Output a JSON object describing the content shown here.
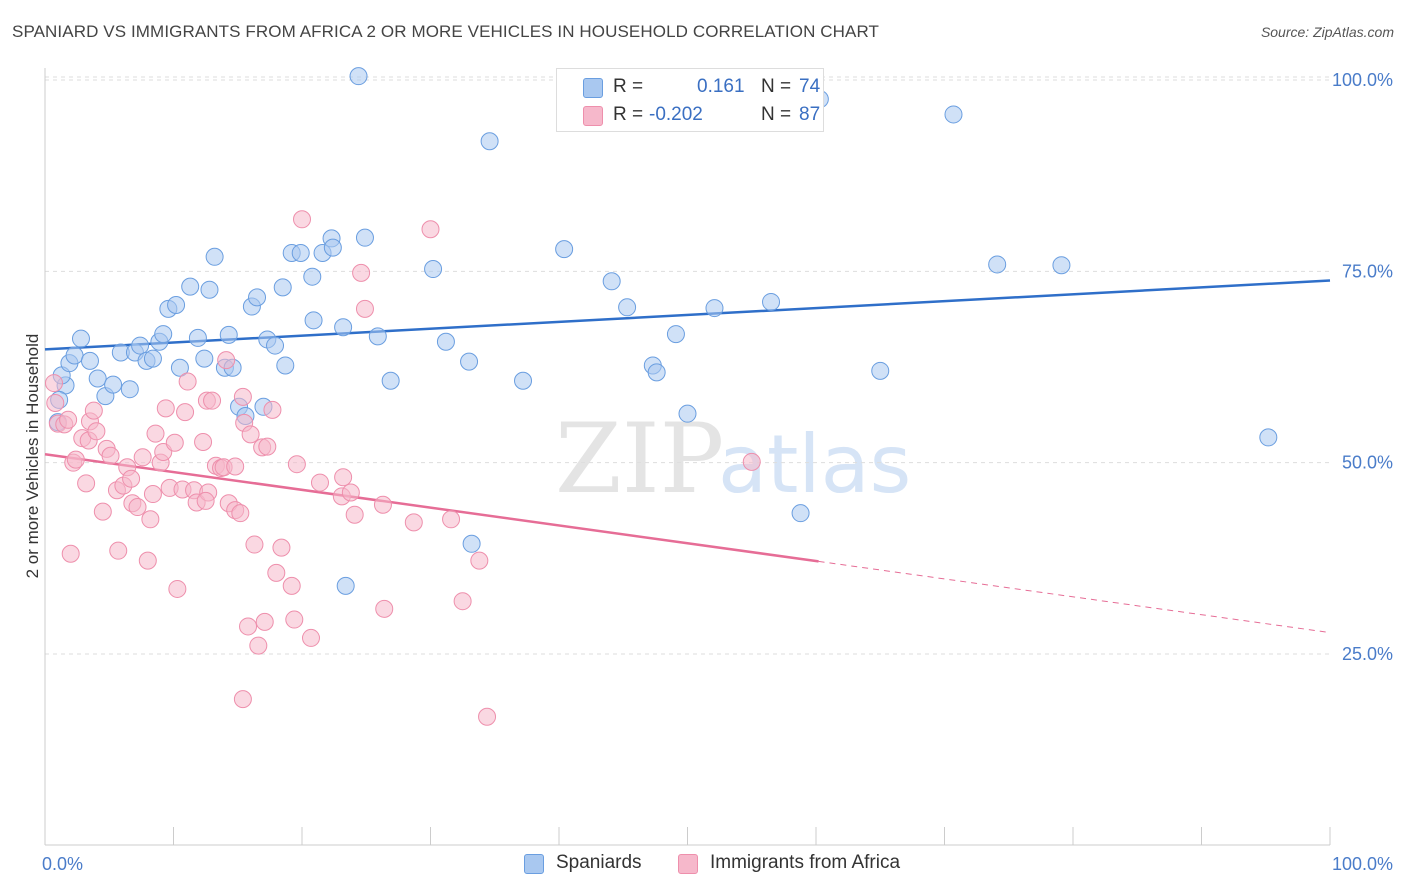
{
  "title": "SPANIARD VS IMMIGRANTS FROM AFRICA 2 OR MORE VEHICLES IN HOUSEHOLD CORRELATION CHART",
  "source": "Source: ZipAtlas.com",
  "watermark": {
    "zip": "ZIP",
    "atlas": "atlas"
  },
  "legend": {
    "rows": [
      {
        "r_label": "R =",
        "r_value": "0.161",
        "n_label": "N =",
        "n_value": "74",
        "color": "#a9c8f0"
      },
      {
        "r_label": "R =",
        "r_value": "-0.202",
        "n_label": "N =",
        "n_value": "87",
        "color": "#f6b8cb"
      }
    ]
  },
  "bottom_legend": [
    {
      "label": "Spaniards",
      "color": "#a9c8f0"
    },
    {
      "label": "Immigrants from Africa",
      "color": "#f6b8cb"
    }
  ],
  "chart_data": {
    "type": "scatter",
    "title": "SPANIARD VS IMMIGRANTS FROM AFRICA 2 OR MORE VEHICLES IN HOUSEHOLD CORRELATION CHART",
    "xlabel": "",
    "ylabel": "2 or more Vehicles in Household",
    "xlim": [
      0,
      100
    ],
    "ylim": [
      0,
      102
    ],
    "x_tick_labels": [
      "0.0%",
      "100.0%"
    ],
    "y_ticks": [
      25,
      50,
      75,
      100
    ],
    "y_tick_labels": [
      "25.0%",
      "50.0%",
      "75.0%",
      "100.0%"
    ],
    "grid": "horizontal dashed",
    "legend_position": "top-center",
    "series": [
      {
        "name": "Spaniards",
        "color": "#6a9ee0",
        "fill": "#a9c8f0",
        "trend": {
          "x": [
            0,
            100
          ],
          "y": [
            64.8,
            73.8
          ],
          "style": "solid"
        },
        "points": [
          [
            24.4,
            100.5
          ],
          [
            34.6,
            92.0
          ],
          [
            60.3,
            97.5
          ],
          [
            70.7,
            95.5
          ],
          [
            1.0,
            55.3
          ],
          [
            1.6,
            60.1
          ],
          [
            1.1,
            58.2
          ],
          [
            1.3,
            61.4
          ],
          [
            1.9,
            63.0
          ],
          [
            2.3,
            64.0
          ],
          [
            2.8,
            66.2
          ],
          [
            3.5,
            63.3
          ],
          [
            4.1,
            61.0
          ],
          [
            4.7,
            58.7
          ],
          [
            5.3,
            60.2
          ],
          [
            5.9,
            64.4
          ],
          [
            6.6,
            59.6
          ],
          [
            7.0,
            64.4
          ],
          [
            7.4,
            65.3
          ],
          [
            7.9,
            63.3
          ],
          [
            8.4,
            63.6
          ],
          [
            8.9,
            65.8
          ],
          [
            9.2,
            66.8
          ],
          [
            9.6,
            70.1
          ],
          [
            10.2,
            70.6
          ],
          [
            10.5,
            62.4
          ],
          [
            11.3,
            73.0
          ],
          [
            11.9,
            66.3
          ],
          [
            12.4,
            63.6
          ],
          [
            12.8,
            72.6
          ],
          [
            13.2,
            76.9
          ],
          [
            14.0,
            62.4
          ],
          [
            14.3,
            66.7
          ],
          [
            14.6,
            62.4
          ],
          [
            15.1,
            57.3
          ],
          [
            15.6,
            56.1
          ],
          [
            16.1,
            70.4
          ],
          [
            16.5,
            71.6
          ],
          [
            17.0,
            57.3
          ],
          [
            17.3,
            66.1
          ],
          [
            17.9,
            65.3
          ],
          [
            18.5,
            72.9
          ],
          [
            18.7,
            62.7
          ],
          [
            19.2,
            77.4
          ],
          [
            19.9,
            77.4
          ],
          [
            20.8,
            74.3
          ],
          [
            20.9,
            68.6
          ],
          [
            21.6,
            77.4
          ],
          [
            22.3,
            79.3
          ],
          [
            22.4,
            78.1
          ],
          [
            23.2,
            67.7
          ],
          [
            23.4,
            33.9
          ],
          [
            24.9,
            79.4
          ],
          [
            25.9,
            66.5
          ],
          [
            26.9,
            60.7
          ],
          [
            30.2,
            75.3
          ],
          [
            31.2,
            65.8
          ],
          [
            33.0,
            63.2
          ],
          [
            33.2,
            39.4
          ],
          [
            37.2,
            60.7
          ],
          [
            40.4,
            77.9
          ],
          [
            44.1,
            73.7
          ],
          [
            45.3,
            70.3
          ],
          [
            47.3,
            62.7
          ],
          [
            47.6,
            61.8
          ],
          [
            49.1,
            66.8
          ],
          [
            50.0,
            56.4
          ],
          [
            52.1,
            70.2
          ],
          [
            56.5,
            71.0
          ],
          [
            58.8,
            43.4
          ],
          [
            74.1,
            75.9
          ],
          [
            79.1,
            75.8
          ],
          [
            95.2,
            53.3
          ],
          [
            65.0,
            62.0
          ]
        ]
      },
      {
        "name": "Immigrants from Africa",
        "color": "#ee8fac",
        "fill": "#f6b8cb",
        "trend": {
          "x": [
            0,
            60.2
          ],
          "y": [
            51.1,
            37.1
          ],
          "style": "solid",
          "dashed_extension": {
            "x": [
              60.2,
              100
            ],
            "y": [
              37.1,
              27.8
            ]
          }
        },
        "points": [
          [
            0.7,
            60.4
          ],
          [
            0.8,
            57.8
          ],
          [
            1.0,
            55.1
          ],
          [
            1.5,
            55.0
          ],
          [
            1.8,
            55.6
          ],
          [
            2.0,
            38.1
          ],
          [
            2.2,
            50.0
          ],
          [
            2.4,
            50.4
          ],
          [
            2.9,
            53.2
          ],
          [
            3.2,
            47.3
          ],
          [
            3.4,
            52.9
          ],
          [
            3.5,
            55.4
          ],
          [
            3.8,
            56.8
          ],
          [
            4.0,
            54.1
          ],
          [
            4.5,
            43.6
          ],
          [
            4.8,
            51.8
          ],
          [
            5.1,
            50.9
          ],
          [
            5.6,
            46.4
          ],
          [
            5.7,
            38.5
          ],
          [
            6.1,
            47.0
          ],
          [
            6.4,
            49.4
          ],
          [
            6.7,
            47.9
          ],
          [
            6.8,
            44.7
          ],
          [
            7.2,
            44.2
          ],
          [
            7.6,
            50.7
          ],
          [
            8.0,
            37.2
          ],
          [
            8.2,
            42.6
          ],
          [
            8.4,
            45.9
          ],
          [
            8.6,
            53.8
          ],
          [
            9.0,
            50.0
          ],
          [
            9.2,
            51.4
          ],
          [
            9.4,
            57.1
          ],
          [
            9.7,
            46.7
          ],
          [
            10.1,
            52.6
          ],
          [
            10.3,
            33.5
          ],
          [
            10.7,
            46.5
          ],
          [
            10.9,
            56.6
          ],
          [
            11.1,
            60.6
          ],
          [
            11.6,
            46.4
          ],
          [
            11.8,
            44.8
          ],
          [
            12.3,
            52.7
          ],
          [
            12.6,
            58.1
          ],
          [
            12.7,
            46.1
          ],
          [
            13.0,
            58.1
          ],
          [
            13.3,
            49.6
          ],
          [
            13.7,
            49.3
          ],
          [
            13.9,
            49.4
          ],
          [
            14.1,
            63.4
          ],
          [
            14.3,
            44.7
          ],
          [
            14.8,
            43.8
          ],
          [
            14.8,
            49.5
          ],
          [
            15.2,
            43.4
          ],
          [
            15.4,
            58.6
          ],
          [
            15.5,
            55.2
          ],
          [
            15.8,
            28.6
          ],
          [
            16.0,
            53.7
          ],
          [
            16.3,
            39.3
          ],
          [
            16.6,
            26.1
          ],
          [
            16.9,
            52.0
          ],
          [
            17.1,
            29.2
          ],
          [
            17.3,
            52.1
          ],
          [
            17.7,
            56.9
          ],
          [
            18.0,
            35.6
          ],
          [
            18.4,
            38.9
          ],
          [
            19.2,
            33.9
          ],
          [
            19.4,
            29.5
          ],
          [
            19.6,
            49.8
          ],
          [
            20.7,
            27.1
          ],
          [
            21.4,
            47.4
          ],
          [
            23.1,
            45.6
          ],
          [
            23.2,
            48.1
          ],
          [
            23.8,
            46.1
          ],
          [
            24.1,
            43.2
          ],
          [
            24.6,
            74.8
          ],
          [
            24.9,
            70.1
          ],
          [
            26.3,
            44.5
          ],
          [
            26.4,
            30.9
          ],
          [
            28.7,
            42.2
          ],
          [
            30.0,
            80.5
          ],
          [
            31.6,
            42.6
          ],
          [
            32.5,
            31.9
          ],
          [
            33.8,
            37.2
          ],
          [
            34.4,
            16.8
          ],
          [
            20.0,
            81.8
          ],
          [
            15.4,
            19.1
          ],
          [
            55.0,
            50.1
          ],
          [
            12.5,
            45.0
          ]
        ]
      }
    ]
  }
}
